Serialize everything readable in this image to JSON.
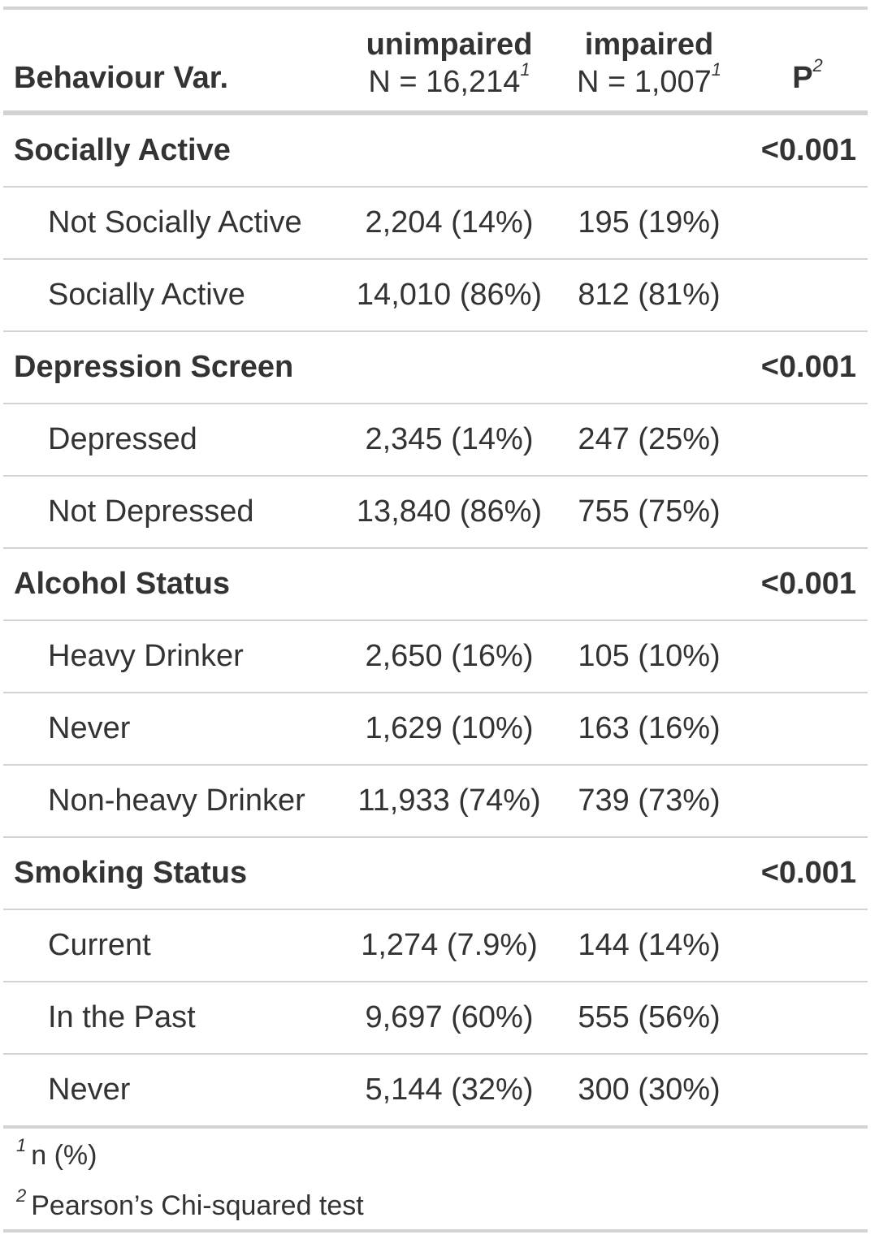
{
  "header": {
    "label_col": "Behaviour Var.",
    "groups": [
      {
        "name": "unimpaired",
        "n": "N = 16,214",
        "footnote": "1"
      },
      {
        "name": "impaired",
        "n": "N = 1,007",
        "footnote": "1"
      }
    ],
    "p_col": "P",
    "p_footnote": "2"
  },
  "rows": [
    {
      "type": "group",
      "label": "Socially Active",
      "p": "<0.001"
    },
    {
      "type": "level",
      "label": "Not Socially Active",
      "c1": "2,204 (14%)",
      "c2": "195 (19%)"
    },
    {
      "type": "level",
      "label": "Socially Active",
      "c1": "14,010 (86%)",
      "c2": "812 (81%)"
    },
    {
      "type": "group",
      "label": "Depression Screen",
      "p": "<0.001"
    },
    {
      "type": "level",
      "label": "Depressed",
      "c1": "2,345 (14%)",
      "c2": "247 (25%)"
    },
    {
      "type": "level",
      "label": "Not Depressed",
      "c1": "13,840 (86%)",
      "c2": "755 (75%)"
    },
    {
      "type": "group",
      "label": "Alcohol Status",
      "p": "<0.001"
    },
    {
      "type": "level",
      "label": "Heavy Drinker",
      "c1": "2,650 (16%)",
      "c2": "105 (10%)"
    },
    {
      "type": "level",
      "label": "Never",
      "c1": "1,629 (10%)",
      "c2": "163 (16%)"
    },
    {
      "type": "level",
      "label": "Non-heavy Drinker",
      "c1": "11,933 (74%)",
      "c2": "739 (73%)"
    },
    {
      "type": "group",
      "label": "Smoking Status",
      "p": "<0.001"
    },
    {
      "type": "level",
      "label": "Current",
      "c1": "1,274 (7.9%)",
      "c2": "144 (14%)"
    },
    {
      "type": "level",
      "label": "In the Past",
      "c1": "9,697 (60%)",
      "c2": "555 (56%)"
    },
    {
      "type": "level",
      "label": "Never",
      "c1": "5,144 (32%)",
      "c2": "300 (30%)"
    }
  ],
  "footnotes": [
    {
      "mark": "1",
      "text": "n (%)"
    },
    {
      "mark": "2",
      "text": "Pearson’s Chi-squared test"
    }
  ]
}
